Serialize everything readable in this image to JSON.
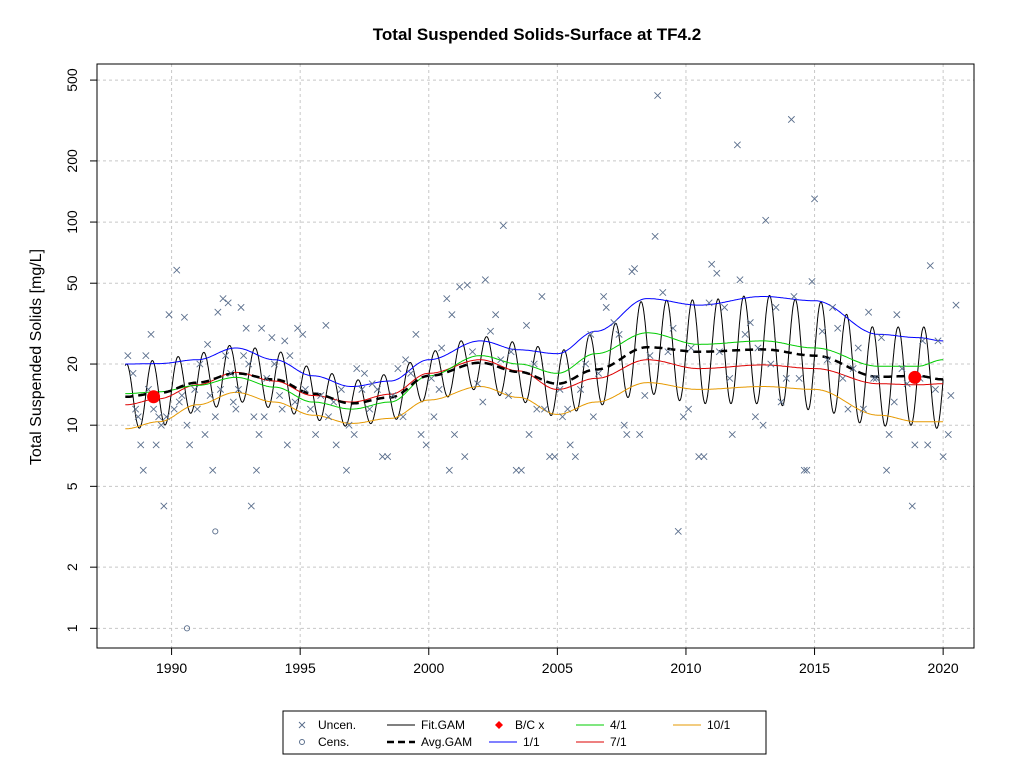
{
  "chart_data": {
    "type": "scatter",
    "title": "Total Suspended Solids-Surface at TF4.2",
    "ylabel": "Total Suspended Solids [mg/L]",
    "xlabel": "",
    "y_scale": "log",
    "xlim": [
      1987.1,
      2021.2
    ],
    "ylim": [
      0.8,
      600
    ],
    "x_ticks": [
      1990,
      1995,
      2000,
      2005,
      2010,
      2015,
      2020
    ],
    "y_ticks": [
      1,
      2,
      5,
      10,
      20,
      50,
      100,
      200,
      500
    ],
    "grid": true,
    "legend_position": "bottom",
    "legend": [
      {
        "label": "Uncen.",
        "kind": "cross",
        "color": "#5a6e8c"
      },
      {
        "label": "Cens.",
        "kind": "circle",
        "color": "#5a6e8c"
      },
      {
        "label": "Fit.GAM",
        "kind": "line",
        "color": "#000000"
      },
      {
        "label": "Avg.GAM",
        "kind": "dash",
        "color": "#000000"
      },
      {
        "label": "B/C x",
        "kind": "diamond",
        "color": "#ff0000"
      },
      {
        "label": "1/1",
        "kind": "line",
        "color": "#0000ff"
      },
      {
        "label": "4/1",
        "kind": "line",
        "color": "#00cc00"
      },
      {
        "label": "7/1",
        "kind": "line",
        "color": "#dd0000"
      },
      {
        "label": "10/1",
        "kind": "line",
        "color": "#e69900"
      }
    ],
    "series_colors": {
      "observations": "#5a6e8c",
      "fit_gam": "#000000",
      "avg_gam": "#000000",
      "q_1_1": "#0000ff",
      "q_4_1": "#00cc00",
      "q_7_1": "#dd0000",
      "q_10_1": "#e69900",
      "bc_points": "#ff0000"
    },
    "uncensored_points": [
      [
        1988.3,
        22
      ],
      [
        1988.5,
        18
      ],
      [
        1988.6,
        12
      ],
      [
        1988.7,
        11
      ],
      [
        1988.8,
        8
      ],
      [
        1988.9,
        6
      ],
      [
        1989.0,
        22
      ],
      [
        1989.1,
        15
      ],
      [
        1989.2,
        28
      ],
      [
        1989.3,
        12
      ],
      [
        1989.4,
        8
      ],
      [
        1989.5,
        11
      ],
      [
        1989.6,
        10
      ],
      [
        1989.7,
        4
      ],
      [
        1989.8,
        11
      ],
      [
        1989.9,
        35
      ],
      [
        1990.1,
        12
      ],
      [
        1990.2,
        58
      ],
      [
        1990.3,
        13
      ],
      [
        1990.4,
        14
      ],
      [
        1990.5,
        34
      ],
      [
        1990.6,
        10
      ],
      [
        1990.7,
        8
      ],
      [
        1990.9,
        15
      ],
      [
        1991.0,
        12
      ],
      [
        1991.1,
        20
      ],
      [
        1991.3,
        9
      ],
      [
        1991.4,
        25
      ],
      [
        1991.5,
        14
      ],
      [
        1991.6,
        6
      ],
      [
        1991.7,
        11
      ],
      [
        1991.8,
        36
      ],
      [
        1991.9,
        15
      ],
      [
        1992.0,
        42
      ],
      [
        1992.1,
        22
      ],
      [
        1992.2,
        40
      ],
      [
        1992.3,
        18
      ],
      [
        1992.4,
        13
      ],
      [
        1992.5,
        12
      ],
      [
        1992.6,
        15
      ],
      [
        1992.7,
        38
      ],
      [
        1992.8,
        22
      ],
      [
        1992.9,
        30
      ],
      [
        1993.0,
        20
      ],
      [
        1993.1,
        4
      ],
      [
        1993.2,
        11
      ],
      [
        1993.3,
        6
      ],
      [
        1993.4,
        9
      ],
      [
        1993.5,
        30
      ],
      [
        1993.6,
        11
      ],
      [
        1993.7,
        17
      ],
      [
        1993.9,
        27
      ],
      [
        1994.0,
        20
      ],
      [
        1994.2,
        14
      ],
      [
        1994.3,
        12
      ],
      [
        1994.4,
        26
      ],
      [
        1994.5,
        8
      ],
      [
        1994.6,
        22
      ],
      [
        1994.8,
        13
      ],
      [
        1994.9,
        30
      ],
      [
        1995.1,
        28
      ],
      [
        1995.2,
        15
      ],
      [
        1995.4,
        12
      ],
      [
        1995.6,
        9
      ],
      [
        1995.8,
        14
      ],
      [
        1996.0,
        31
      ],
      [
        1996.1,
        11
      ],
      [
        1996.3,
        13
      ],
      [
        1996.4,
        8
      ],
      [
        1996.6,
        15
      ],
      [
        1996.8,
        6
      ],
      [
        1996.9,
        10
      ],
      [
        1997.1,
        9
      ],
      [
        1997.2,
        19
      ],
      [
        1997.4,
        15
      ],
      [
        1997.5,
        18
      ],
      [
        1997.7,
        12
      ],
      [
        1997.8,
        16
      ],
      [
        1998.0,
        15
      ],
      [
        1998.2,
        7
      ],
      [
        1998.4,
        7
      ],
      [
        1998.6,
        14
      ],
      [
        1998.8,
        19
      ],
      [
        1999.0,
        11
      ],
      [
        1999.1,
        21
      ],
      [
        1999.3,
        18
      ],
      [
        1999.5,
        28
      ],
      [
        1999.7,
        9
      ],
      [
        1999.9,
        8
      ],
      [
        2000.1,
        17
      ],
      [
        2000.2,
        11
      ],
      [
        2000.4,
        15
      ],
      [
        2000.5,
        24
      ],
      [
        2000.7,
        42
      ],
      [
        2000.8,
        6
      ],
      [
        2000.9,
        35
      ],
      [
        2001.0,
        9
      ],
      [
        2001.2,
        48
      ],
      [
        2001.4,
        7
      ],
      [
        2001.5,
        49
      ],
      [
        2001.7,
        23
      ],
      [
        2001.9,
        16
      ],
      [
        2002.1,
        13
      ],
      [
        2002.2,
        52
      ],
      [
        2002.4,
        29
      ],
      [
        2002.6,
        35
      ],
      [
        2002.8,
        21
      ],
      [
        2002.9,
        96
      ],
      [
        2003.1,
        14
      ],
      [
        2003.2,
        23
      ],
      [
        2003.4,
        6
      ],
      [
        2003.6,
        6
      ],
      [
        2003.8,
        31
      ],
      [
        2003.9,
        9
      ],
      [
        2004.1,
        20
      ],
      [
        2004.2,
        12
      ],
      [
        2004.4,
        43
      ],
      [
        2004.5,
        12
      ],
      [
        2004.7,
        7
      ],
      [
        2004.9,
        7
      ],
      [
        2005.1,
        15
      ],
      [
        2005.2,
        11
      ],
      [
        2005.4,
        12
      ],
      [
        2005.5,
        8
      ],
      [
        2005.7,
        7
      ],
      [
        2005.9,
        15
      ],
      [
        2006.1,
        20
      ],
      [
        2006.3,
        28
      ],
      [
        2006.4,
        11
      ],
      [
        2006.6,
        18
      ],
      [
        2006.8,
        43
      ],
      [
        2006.9,
        38
      ],
      [
        2007.2,
        32
      ],
      [
        2007.4,
        28
      ],
      [
        2007.6,
        10
      ],
      [
        2007.7,
        9
      ],
      [
        2007.9,
        57
      ],
      [
        2008.0,
        59
      ],
      [
        2008.2,
        9
      ],
      [
        2008.4,
        14
      ],
      [
        2008.6,
        22
      ],
      [
        2008.8,
        85
      ],
      [
        2008.9,
        420
      ],
      [
        2009.1,
        45
      ],
      [
        2009.3,
        23
      ],
      [
        2009.5,
        30
      ],
      [
        2009.7,
        3
      ],
      [
        2009.9,
        11
      ],
      [
        2010.1,
        12
      ],
      [
        2010.2,
        24
      ],
      [
        2010.5,
        7
      ],
      [
        2010.7,
        7
      ],
      [
        2010.9,
        40
      ],
      [
        2011.0,
        62
      ],
      [
        2011.2,
        56
      ],
      [
        2011.3,
        23
      ],
      [
        2011.5,
        38
      ],
      [
        2011.7,
        17
      ],
      [
        2011.8,
        9
      ],
      [
        2012.0,
        240
      ],
      [
        2012.1,
        52
      ],
      [
        2012.3,
        28
      ],
      [
        2012.5,
        32
      ],
      [
        2012.7,
        11
      ],
      [
        2012.8,
        24
      ],
      [
        2013.0,
        10
      ],
      [
        2013.1,
        102
      ],
      [
        2013.3,
        20
      ],
      [
        2013.5,
        38
      ],
      [
        2013.7,
        13
      ],
      [
        2013.9,
        17
      ],
      [
        2014.1,
        320
      ],
      [
        2014.2,
        43
      ],
      [
        2014.4,
        17
      ],
      [
        2014.6,
        6
      ],
      [
        2014.7,
        6
      ],
      [
        2014.9,
        51
      ],
      [
        2015.0,
        130
      ],
      [
        2015.3,
        29
      ],
      [
        2015.5,
        21
      ],
      [
        2015.7,
        38
      ],
      [
        2015.9,
        30
      ],
      [
        2016.1,
        17
      ],
      [
        2016.3,
        12
      ],
      [
        2016.5,
        19
      ],
      [
        2016.7,
        24
      ],
      [
        2016.9,
        12
      ],
      [
        2017.1,
        36
      ],
      [
        2017.3,
        17
      ],
      [
        2017.4,
        17
      ],
      [
        2017.6,
        27
      ],
      [
        2017.8,
        6
      ],
      [
        2017.9,
        9
      ],
      [
        2018.1,
        13
      ],
      [
        2018.2,
        35
      ],
      [
        2018.4,
        19
      ],
      [
        2018.6,
        16
      ],
      [
        2018.8,
        4
      ],
      [
        2018.9,
        8
      ],
      [
        2019.1,
        17
      ],
      [
        2019.2,
        26
      ],
      [
        2019.4,
        8
      ],
      [
        2019.5,
        61
      ],
      [
        2019.7,
        15
      ],
      [
        2019.8,
        26
      ],
      [
        2020.0,
        7
      ],
      [
        2020.2,
        9
      ],
      [
        2020.3,
        14
      ],
      [
        2020.5,
        39
      ]
    ],
    "censored_points": [
      [
        1991.7,
        3
      ],
      [
        1990.6,
        1
      ]
    ],
    "bc_points": [
      [
        1989.3,
        13.8
      ],
      [
        2018.9,
        17.2
      ]
    ],
    "trend_year_nodes": [
      1988.2,
      1989.5,
      1991,
      1992.5,
      1994,
      1995.5,
      1997,
      1998.5,
      2000,
      2002,
      2003.5,
      2005,
      2006.5,
      2008.5,
      2010.5,
      2013,
      2015,
      2017.5,
      2019,
      2020
    ],
    "avg_gam_nodes": [
      13.8,
      14.4,
      16.2,
      18.0,
      16.8,
      14.3,
      12.8,
      13.7,
      17.5,
      20.3,
      18.3,
      16.0,
      18.8,
      24.2,
      23.0,
      23.6,
      22.0,
      17.3,
      17.5,
      16.8
    ],
    "line_1_1_nodes": [
      20.0,
      20.1,
      21.0,
      24.0,
      21.0,
      17.5,
      15.5,
      16.5,
      21.0,
      26.0,
      23.5,
      22.5,
      29.0,
      42.0,
      39.0,
      43.0,
      41.0,
      28.0,
      27.0,
      26.0
    ],
    "line_4_1_nodes": [
      14.3,
      14.6,
      15.7,
      17.2,
      15.4,
      13.0,
      12.0,
      13.0,
      17.5,
      22.0,
      20.0,
      18.0,
      22.5,
      28.5,
      25.0,
      26.0,
      24.0,
      19.5,
      19.5,
      21.0
    ],
    "line_7_1_nodes": [
      12.6,
      13.5,
      15.8,
      18.2,
      16.5,
      14.0,
      13.0,
      14.2,
      18.0,
      21.0,
      18.5,
      15.0,
      17.0,
      21.0,
      19.0,
      19.8,
      19.0,
      16.0,
      15.8,
      16.0
    ],
    "line_10_1_nodes": [
      9.6,
      10.4,
      12.6,
      14.5,
      13.0,
      11.2,
      10.2,
      10.8,
      13.3,
      15.5,
      13.7,
      11.3,
      13.0,
      16.2,
      15.0,
      15.5,
      15.0,
      11.2,
      10.4,
      10.4
    ],
    "fit_gam_amplitude_nodes": [
      1.45,
      1.45,
      1.4,
      1.38,
      1.38,
      1.35,
      1.3,
      1.3,
      1.32,
      1.35,
      1.4,
      1.45,
      1.5,
      1.7,
      1.8,
      1.85,
      1.85,
      1.75,
      1.75,
      1.75
    ],
    "fit_gam_range": [
      1988.2,
      2020.0
    ]
  }
}
